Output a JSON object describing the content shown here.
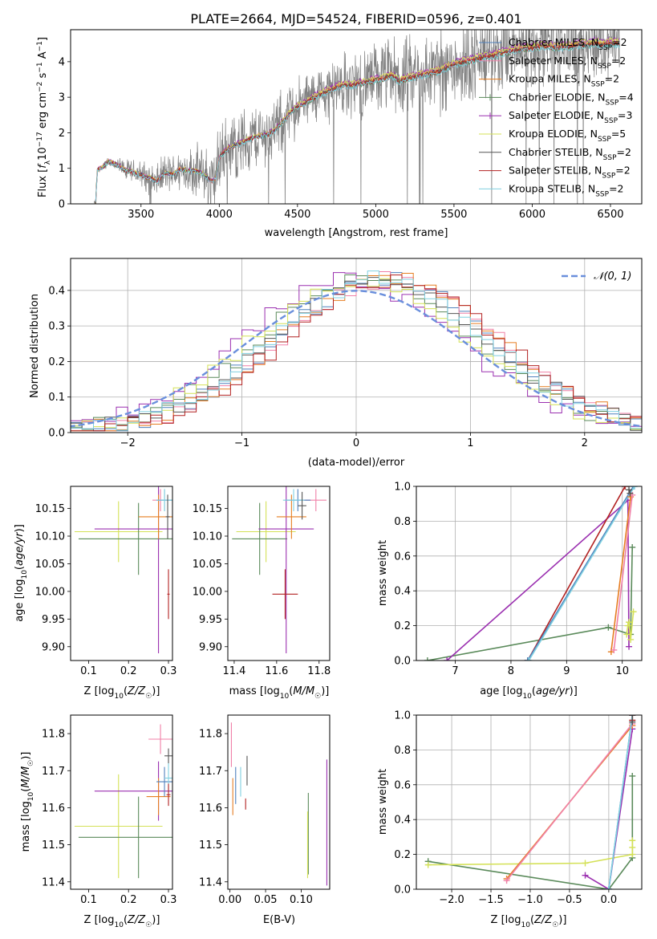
{
  "figure_title": "PLATE=2664, MJD=54524, FIBERID=0596, z=0.401",
  "colors": {
    "chabrier_miles": "#4f81bd",
    "salpeter_miles": "#f080a8",
    "kroupa_miles": "#e67e22",
    "chabrier_elodie": "#5a8a5a",
    "salpeter_elodie": "#9b30b0",
    "kroupa_elodie": "#d4e157",
    "chabrier_stelib": "#555555",
    "salpeter_stelib": "#b22222",
    "kroupa_stelib": "#80d0e0",
    "gaussian": "#6a8fdc",
    "data": "#808080"
  },
  "chart_data": [
    {
      "id": "spectrum",
      "type": "line",
      "xlabel": "wavelength [Angstrom, rest frame]",
      "ylabel": "Flux [f_λ 10^-17 erg cm^-2 s^-1 A^-1]",
      "xlim": [
        3050,
        6700
      ],
      "ylim": [
        0,
        4.9
      ],
      "xticks": [
        3500,
        4000,
        4500,
        5000,
        5500,
        6000,
        6500
      ],
      "yticks": [
        0,
        1,
        2,
        3,
        4
      ],
      "legend_position": "upper right",
      "legend": [
        {
          "key": "chabrier_miles",
          "label": "Chabrier MILES, N_SSP=2",
          "base": "Chabrier MILES, N",
          "sub": "SSP",
          "tail": "=2"
        },
        {
          "key": "salpeter_miles",
          "label": "Salpeter MILES, N_SSP=2",
          "base": "Salpeter MILES, N",
          "sub": "SSP",
          "tail": "=2"
        },
        {
          "key": "kroupa_miles",
          "label": "Kroupa MILES, N_SSP=2",
          "base": "Kroupa MILES, N",
          "sub": "SSP",
          "tail": "=2"
        },
        {
          "key": "chabrier_elodie",
          "label": "Chabrier ELODIE, N_SSP=4",
          "base": "Chabrier ELODIE, N",
          "sub": "SSP",
          "tail": "=4"
        },
        {
          "key": "salpeter_elodie",
          "label": "Salpeter ELODIE, N_SSP=3",
          "base": "Salpeter ELODIE, N",
          "sub": "SSP",
          "tail": "=3"
        },
        {
          "key": "kroupa_elodie",
          "label": "Kroupa ELODIE, N_SSP=5",
          "base": "Kroupa ELODIE, N",
          "sub": "SSP",
          "tail": "=5"
        },
        {
          "key": "chabrier_stelib",
          "label": "Chabrier STELIB, N_SSP=2",
          "base": "Chabrier STELIB, N",
          "sub": "SSP",
          "tail": "=2"
        },
        {
          "key": "salpeter_stelib",
          "label": "Salpeter STELIB, N_SSP=2",
          "base": "Salpeter STELIB, N",
          "sub": "SSP",
          "tail": "=2"
        },
        {
          "key": "kroupa_stelib",
          "label": "Kroupa STELIB, N_SSP=2",
          "base": "Kroupa STELIB, N",
          "sub": "SSP",
          "tail": "=2"
        }
      ],
      "model_shape": [
        [
          3210,
          0.02
        ],
        [
          3220,
          0.95
        ],
        [
          3260,
          1.05
        ],
        [
          3290,
          1.2
        ],
        [
          3320,
          1.15
        ],
        [
          3360,
          1.05
        ],
        [
          3400,
          0.95
        ],
        [
          3430,
          0.92
        ],
        [
          3480,
          0.85
        ],
        [
          3520,
          0.78
        ],
        [
          3560,
          0.72
        ],
        [
          3600,
          0.62
        ],
        [
          3650,
          0.88
        ],
        [
          3700,
          0.82
        ],
        [
          3750,
          0.98
        ],
        [
          3800,
          0.95
        ],
        [
          3850,
          0.92
        ],
        [
          3900,
          0.85
        ],
        [
          3950,
          0.62
        ],
        [
          3980,
          0.75
        ],
        [
          4000,
          1.3
        ],
        [
          4050,
          1.55
        ],
        [
          4100,
          1.65
        ],
        [
          4150,
          1.75
        ],
        [
          4200,
          1.85
        ],
        [
          4250,
          1.9
        ],
        [
          4300,
          1.95
        ],
        [
          4350,
          2.05
        ],
        [
          4400,
          2.3
        ],
        [
          4450,
          2.55
        ],
        [
          4500,
          2.75
        ],
        [
          4550,
          2.85
        ],
        [
          4600,
          3.0
        ],
        [
          4650,
          3.1
        ],
        [
          4700,
          3.2
        ],
        [
          4750,
          3.3
        ],
        [
          4800,
          3.35
        ],
        [
          4850,
          3.35
        ],
        [
          4900,
          3.4
        ],
        [
          4950,
          3.45
        ],
        [
          5000,
          3.5
        ],
        [
          5050,
          3.55
        ],
        [
          5100,
          3.65
        ],
        [
          5150,
          3.45
        ],
        [
          5200,
          3.55
        ],
        [
          5250,
          3.6
        ],
        [
          5300,
          3.65
        ],
        [
          5350,
          3.7
        ],
        [
          5400,
          3.75
        ],
        [
          5450,
          3.85
        ],
        [
          5500,
          3.95
        ],
        [
          5550,
          4.0
        ],
        [
          5600,
          4.05
        ],
        [
          5650,
          4.1
        ],
        [
          5700,
          4.15
        ],
        [
          5750,
          4.2
        ],
        [
          5800,
          4.25
        ],
        [
          5850,
          4.3
        ],
        [
          5900,
          4.35
        ],
        [
          5950,
          4.4
        ],
        [
          6000,
          4.42
        ],
        [
          6050,
          4.45
        ],
        [
          6100,
          4.45
        ],
        [
          6150,
          4.42
        ],
        [
          6200,
          4.45
        ],
        [
          6250,
          4.45
        ],
        [
          6300,
          4.5
        ],
        [
          6350,
          4.5
        ],
        [
          6400,
          4.55
        ],
        [
          6450,
          4.5
        ],
        [
          6500,
          4.55
        ],
        [
          6560,
          4.52
        ]
      ],
      "model_offsets": {
        "chabrier_miles": 0.02,
        "salpeter_miles": 0.04,
        "kroupa_miles": 0.0,
        "chabrier_elodie": -0.06,
        "salpeter_elodie": 0.08,
        "kroupa_elodie": 0.06,
        "chabrier_stelib": -0.02,
        "salpeter_stelib": -0.04,
        "kroupa_stelib": -0.08
      },
      "data_noise_profile": [
        [
          3200,
          0.05
        ],
        [
          3500,
          0.35
        ],
        [
          3800,
          0.55
        ],
        [
          4000,
          0.9
        ],
        [
          4300,
          0.8
        ],
        [
          4600,
          0.7
        ],
        [
          5000,
          0.9
        ],
        [
          5500,
          1.1
        ],
        [
          6000,
          1.0
        ],
        [
          6560,
          0.9
        ]
      ]
    },
    {
      "id": "residuals",
      "type": "step",
      "xlabel": "(data-model)/error",
      "ylabel": "Normed distribution",
      "xlim": [
        -2.5,
        2.5
      ],
      "ylim": [
        0,
        0.49
      ],
      "xticks": [
        -2,
        -1,
        0,
        1,
        2
      ],
      "yticks": [
        0.0,
        0.1,
        0.2,
        0.3,
        0.4
      ],
      "legend_position": "upper right",
      "gaussian_label": "𝒩(0, 1)",
      "grid": true,
      "bin_edges_start": -2.6,
      "bin_width": 0.1
    },
    {
      "id": "age_vs_Z",
      "type": "errorbar",
      "xlabel": "Z [log10(Z/Z☉)]",
      "ylabel": "age  [log10(age/yr)]",
      "xlim": [
        0.055,
        0.31
      ],
      "ylim": [
        9.875,
        10.19
      ],
      "xticks": [
        0.1,
        0.2,
        0.3
      ],
      "yticks": [
        9.9,
        9.95,
        10.0,
        10.05,
        10.1,
        10.15
      ],
      "points": [
        {
          "key": "kroupa_elodie",
          "x": 0.175,
          "xerr": 0.11,
          "y": 10.108,
          "yerr": 0.055
        },
        {
          "key": "chabrier_elodie",
          "x": 0.225,
          "xerr": 0.15,
          "y": 10.095,
          "yerr": 0.065
        },
        {
          "key": "salpeter_elodie",
          "x": 0.275,
          "xerr": 0.16,
          "y": 10.113,
          "yerr": 0.225
        },
        {
          "key": "kroupa_miles",
          "x": 0.275,
          "xerr": 0.05,
          "y": 10.135,
          "yerr": 0.04
        },
        {
          "key": "salpeter_miles",
          "x": 0.28,
          "xerr": 0.02,
          "y": 10.165,
          "yerr": 0.02
        },
        {
          "key": "chabrier_miles",
          "x": 0.29,
          "xerr": 0.02,
          "y": 10.165,
          "yerr": 0.02
        },
        {
          "key": "kroupa_stelib",
          "x": 0.29,
          "xerr": 0.02,
          "y": 10.165,
          "yerr": 0.02
        },
        {
          "key": "chabrier_stelib",
          "x": 0.298,
          "xerr": 0.005,
          "y": 10.135,
          "yerr": 0.04
        },
        {
          "key": "salpeter_stelib",
          "x": 0.3,
          "xerr": 0.003,
          "y": 9.995,
          "yerr": 0.045
        }
      ]
    },
    {
      "id": "age_vs_mass",
      "type": "errorbar",
      "xlabel": "mass [log10(M/M☉)]",
      "ylabel": "",
      "xlim": [
        11.37,
        11.85
      ],
      "ylim": [
        9.875,
        10.19
      ],
      "xticks": [
        11.4,
        11.6,
        11.8
      ],
      "yticks": [
        9.9,
        9.95,
        10.0,
        10.05,
        10.1,
        10.15
      ],
      "points": [
        {
          "key": "kroupa_elodie",
          "x": 11.55,
          "xerr": 0.14,
          "y": 10.108,
          "yerr": 0.055
        },
        {
          "key": "chabrier_elodie",
          "x": 11.52,
          "xerr": 0.13,
          "y": 10.095,
          "yerr": 0.065
        },
        {
          "key": "salpeter_elodie",
          "x": 11.645,
          "xerr": 0.13,
          "y": 10.113,
          "yerr": 0.225
        },
        {
          "key": "kroupa_miles",
          "x": 11.67,
          "xerr": 0.07,
          "y": 10.135,
          "yerr": 0.04
        },
        {
          "key": "salpeter_miles",
          "x": 11.785,
          "xerr": 0.05,
          "y": 10.165,
          "yerr": 0.02
        },
        {
          "key": "chabrier_miles",
          "x": 11.7,
          "xerr": 0.06,
          "y": 10.165,
          "yerr": 0.02
        },
        {
          "key": "kroupa_stelib",
          "x": 11.68,
          "xerr": 0.05,
          "y": 10.165,
          "yerr": 0.02
        },
        {
          "key": "chabrier_stelib",
          "x": 11.72,
          "xerr": 0.02,
          "y": 10.155,
          "yerr": 0.025
        },
        {
          "key": "salpeter_stelib",
          "x": 11.64,
          "xerr": 0.06,
          "y": 9.995,
          "yerr": 0.045
        }
      ]
    },
    {
      "id": "weight_vs_age",
      "type": "line",
      "xlabel": "age  [log10(age/yr)]",
      "ylabel": "mass weight",
      "xlim": [
        6.3,
        10.35
      ],
      "ylim": [
        0,
        1.0
      ],
      "xticks": [
        7,
        8,
        9,
        10
      ],
      "yticks": [
        0.0,
        0.2,
        0.4,
        0.6,
        0.8,
        1.0
      ],
      "grid": true,
      "series": [
        {
          "key": "chabrier_elodie",
          "x": [
            6.5,
            9.75,
            10.15,
            10.18
          ],
          "y": [
            0.0,
            0.19,
            0.15,
            0.65
          ]
        },
        {
          "key": "salpeter_elodie",
          "x": [
            6.85,
            10.1,
            10.12
          ],
          "y": [
            0.0,
            0.92,
            0.08
          ]
        },
        {
          "key": "salpeter_stelib",
          "x": [
            8.3,
            10.05
          ],
          "y": [
            0.0,
            1.0
          ]
        },
        {
          "key": "chabrier_miles",
          "x": [
            8.3,
            10.2
          ],
          "y": [
            0.0,
            1.0
          ]
        },
        {
          "key": "kroupa_stelib",
          "x": [
            8.32,
            10.22
          ],
          "y": [
            0.0,
            1.0
          ]
        },
        {
          "key": "kroupa_miles",
          "x": [
            9.8,
            10.15
          ],
          "y": [
            0.05,
            0.94
          ]
        },
        {
          "key": "salpeter_miles",
          "x": [
            9.85,
            10.18
          ],
          "y": [
            0.06,
            0.95
          ]
        },
        {
          "key": "kroupa_elodie",
          "x": [
            10.08,
            10.1,
            10.12,
            10.15,
            10.2
          ],
          "y": [
            0.15,
            0.2,
            0.22,
            0.12,
            0.28
          ]
        },
        {
          "key": "chabrier_stelib",
          "x": [
            10.12,
            10.14
          ],
          "y": [
            0.98,
            0.96
          ]
        }
      ]
    },
    {
      "id": "mass_vs_Z",
      "type": "errorbar",
      "xlabel": "Z [log10(Z/Z☉)]",
      "ylabel": "mass [log10(M/M☉)]",
      "xlim": [
        0.055,
        0.31
      ],
      "ylim": [
        11.38,
        11.85
      ],
      "xticks": [
        0.1,
        0.2,
        0.3
      ],
      "yticks": [
        11.4,
        11.5,
        11.6,
        11.7,
        11.8
      ],
      "points": [
        {
          "key": "kroupa_elodie",
          "x": 0.175,
          "xerr": 0.11,
          "y": 11.55,
          "yerr": 0.14
        },
        {
          "key": "chabrier_elodie",
          "x": 0.225,
          "xerr": 0.15,
          "y": 11.52,
          "yerr": 0.11
        },
        {
          "key": "salpeter_elodie",
          "x": 0.275,
          "xerr": 0.16,
          "y": 11.645,
          "yerr": 0.08
        },
        {
          "key": "kroupa_miles",
          "x": 0.275,
          "xerr": 0.03,
          "y": 11.63,
          "yerr": 0.05
        },
        {
          "key": "chabrier_miles",
          "x": 0.29,
          "xerr": 0.02,
          "y": 11.67,
          "yerr": 0.04
        },
        {
          "key": "salpeter_miles",
          "x": 0.28,
          "xerr": 0.03,
          "y": 11.785,
          "yerr": 0.04
        },
        {
          "key": "kroupa_stelib",
          "x": 0.3,
          "xerr": 0.01,
          "y": 11.68,
          "yerr": 0.04
        },
        {
          "key": "chabrier_stelib",
          "x": 0.3,
          "xerr": 0.01,
          "y": 11.74,
          "yerr": 0.02
        },
        {
          "key": "salpeter_stelib",
          "x": 0.3,
          "xerr": 0.005,
          "y": 11.635,
          "yerr": 0.03
        }
      ]
    },
    {
      "id": "mass_vs_ebv",
      "type": "errorbar",
      "xlabel": "E(B-V)",
      "ylabel": "",
      "xlim": [
        -0.003,
        0.14
      ],
      "ylim": [
        11.38,
        11.85
      ],
      "xticks": [
        0.0,
        0.05,
        0.1
      ],
      "yticks": [
        11.4,
        11.5,
        11.6,
        11.7,
        11.8
      ],
      "points": [
        {
          "key": "salpeter_miles",
          "x": 0.002,
          "xerr": 0,
          "y": 11.77,
          "yerr": 0.06
        },
        {
          "key": "kroupa_miles",
          "x": 0.004,
          "xerr": 0,
          "y": 11.63,
          "yerr": 0.05
        },
        {
          "key": "chabrier_miles",
          "x": 0.008,
          "xerr": 0,
          "y": 11.66,
          "yerr": 0.05
        },
        {
          "key": "kroupa_stelib",
          "x": 0.015,
          "xerr": 0,
          "y": 11.67,
          "yerr": 0.04
        },
        {
          "key": "chabrier_stelib",
          "x": 0.024,
          "xerr": 0,
          "y": 11.7,
          "yerr": 0.04
        },
        {
          "key": "salpeter_stelib",
          "x": 0.022,
          "xerr": 0,
          "y": 11.61,
          "yerr": 0.015
        },
        {
          "key": "chabrier_elodie",
          "x": 0.11,
          "xerr": 0,
          "y": 11.53,
          "yerr": 0.11
        },
        {
          "key": "kroupa_elodie",
          "x": 0.109,
          "xerr": 0,
          "y": 11.5,
          "yerr": 0.09
        },
        {
          "key": "salpeter_elodie",
          "x": 0.136,
          "xerr": 0,
          "y": 11.56,
          "yerr": 0.17
        }
      ]
    },
    {
      "id": "weight_vs_Z",
      "type": "line",
      "xlabel": "Z [log10(Z/Z☉)]",
      "ylabel": "mass weight",
      "xlim": [
        -2.45,
        0.42
      ],
      "ylim": [
        0,
        1.0
      ],
      "xticks": [
        -2.0,
        -1.5,
        -1.0,
        -0.5,
        0.0
      ],
      "yticks": [
        0.0,
        0.2,
        0.4,
        0.6,
        0.8,
        1.0
      ],
      "grid": true,
      "series": [
        {
          "key": "chabrier_elodie",
          "x": [
            -2.3,
            0.0,
            0.3,
            0.3
          ],
          "y": [
            0.16,
            0.0,
            0.18,
            0.65
          ]
        },
        {
          "key": "kroupa_elodie",
          "x": [
            -2.3,
            -0.3,
            0.3,
            0.3,
            0.3
          ],
          "y": [
            0.14,
            0.15,
            0.2,
            0.24,
            0.28
          ]
        },
        {
          "key": "salpeter_elodie",
          "x": [
            -0.3,
            0.0,
            0.3
          ],
          "y": [
            0.08,
            0.0,
            0.92
          ]
        },
        {
          "key": "kroupa_miles",
          "x": [
            -1.3,
            0.3
          ],
          "y": [
            0.06,
            0.94
          ]
        },
        {
          "key": "salpeter_miles",
          "x": [
            -1.3,
            0.3
          ],
          "y": [
            0.05,
            0.95
          ]
        },
        {
          "key": "chabrier_miles",
          "x": [
            0.0,
            0.3
          ],
          "y": [
            0.0,
            1.0
          ]
        },
        {
          "key": "kroupa_stelib",
          "x": [
            0.0,
            0.3
          ],
          "y": [
            0.0,
            1.0
          ]
        },
        {
          "key": "salpeter_stelib",
          "x": [
            0.3,
            0.3
          ],
          "y": [
            0.97,
            1.0
          ]
        },
        {
          "key": "chabrier_stelib",
          "x": [
            0.3,
            0.3
          ],
          "y": [
            0.96,
            1.0
          ]
        }
      ]
    }
  ]
}
